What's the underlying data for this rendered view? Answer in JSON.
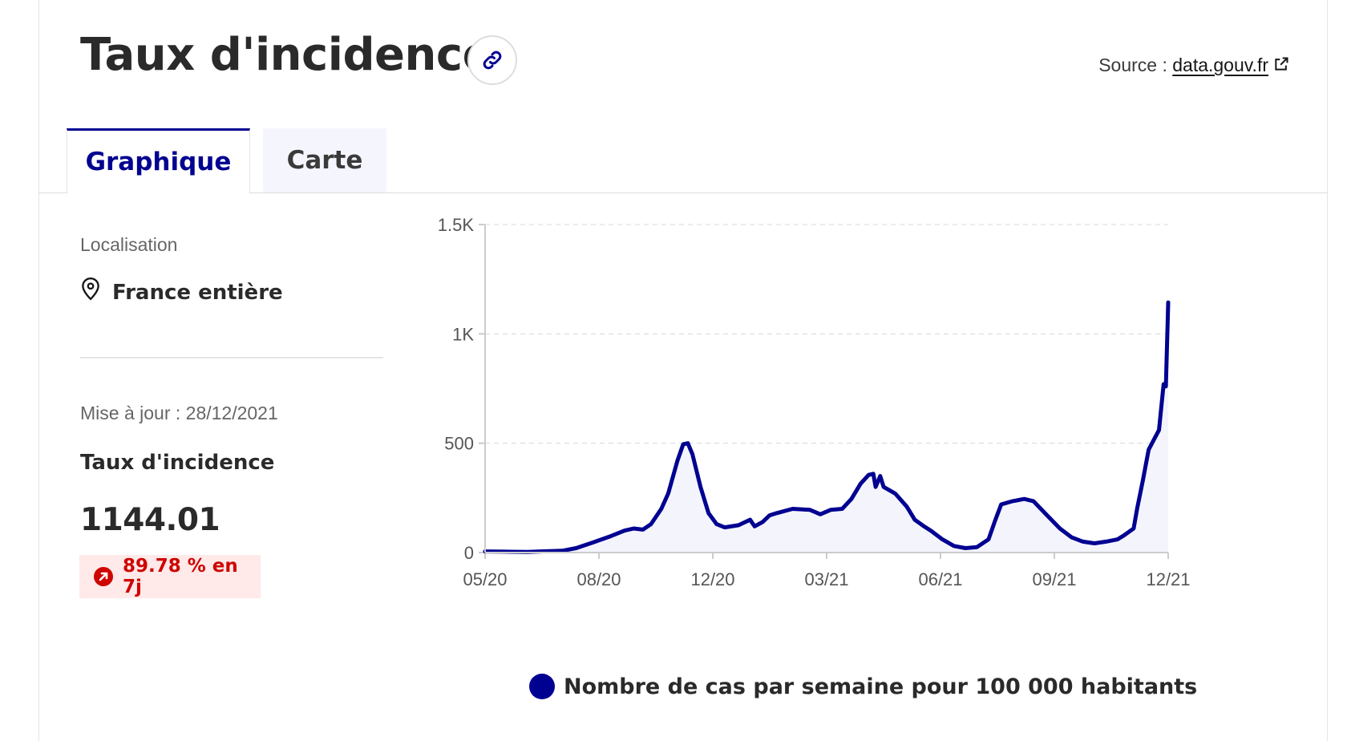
{
  "header": {
    "title": "Taux d'incidence",
    "source_prefix": "Source :",
    "source_link": "data.gouv.fr"
  },
  "icons": {
    "link": "link-icon",
    "external": "external-link-icon",
    "location": "location-pin-icon",
    "trend": "arrow-up-right-icon"
  },
  "tabs": [
    {
      "label": "Graphique",
      "selected": true
    },
    {
      "label": "Carte",
      "selected": false
    }
  ],
  "sidebar": {
    "location_label": "Localisation",
    "location_value": "France entière",
    "update_label": "Mise à jour : 28/12/2021",
    "indicator_label": "Taux d'incidence",
    "indicator_value": "1144.01",
    "trend_text": "89.78 % en 7j"
  },
  "colors": {
    "primary": "#000091",
    "badge_bg": "#ffe9e9",
    "badge_text": "#ce0500"
  },
  "chart_data": {
    "type": "area",
    "x_tick_labels": [
      "05/20",
      "08/20",
      "12/20",
      "03/21",
      "06/21",
      "09/21",
      "12/21"
    ],
    "y_tick_labels": [
      "0",
      "500",
      "1K",
      "1.5K"
    ],
    "y_ticks": [
      0,
      500,
      1000,
      1500
    ],
    "ylim": [
      0,
      1500
    ],
    "xlim": [
      "2020-05-14",
      "2021-12-28"
    ],
    "grid": true,
    "legend_position": "bottom",
    "series": [
      {
        "name": "Nombre de cas par semaine pour 100 000 habitants",
        "color": "#000091",
        "points": [
          [
            "2020-05-14",
            5
          ],
          [
            "2020-06-01",
            4
          ],
          [
            "2020-06-20",
            3
          ],
          [
            "2020-07-01",
            5
          ],
          [
            "2020-07-20",
            8
          ],
          [
            "2020-08-01",
            20
          ],
          [
            "2020-08-15",
            45
          ],
          [
            "2020-08-31",
            75
          ],
          [
            "2020-09-12",
            100
          ],
          [
            "2020-09-20",
            110
          ],
          [
            "2020-09-28",
            105
          ],
          [
            "2020-10-05",
            130
          ],
          [
            "2020-10-14",
            200
          ],
          [
            "2020-10-20",
            270
          ],
          [
            "2020-10-28",
            420
          ],
          [
            "2020-11-02",
            495
          ],
          [
            "2020-11-06",
            500
          ],
          [
            "2020-11-10",
            450
          ],
          [
            "2020-11-17",
            300
          ],
          [
            "2020-11-24",
            180
          ],
          [
            "2020-12-01",
            130
          ],
          [
            "2020-12-08",
            115
          ],
          [
            "2020-12-20",
            125
          ],
          [
            "2020-12-30",
            150
          ],
          [
            "2021-01-03",
            120
          ],
          [
            "2021-01-10",
            140
          ],
          [
            "2021-01-16",
            170
          ],
          [
            "2021-01-22",
            180
          ],
          [
            "2021-02-05",
            200
          ],
          [
            "2021-02-20",
            195
          ],
          [
            "2021-03-01",
            175
          ],
          [
            "2021-03-10",
            195
          ],
          [
            "2021-03-20",
            200
          ],
          [
            "2021-03-28",
            245
          ],
          [
            "2021-04-05",
            315
          ],
          [
            "2021-04-12",
            355
          ],
          [
            "2021-04-16",
            360
          ],
          [
            "2021-04-18",
            300
          ],
          [
            "2021-04-22",
            350
          ],
          [
            "2021-04-25",
            300
          ],
          [
            "2021-05-05",
            270
          ],
          [
            "2021-05-15",
            210
          ],
          [
            "2021-05-22",
            150
          ],
          [
            "2021-05-30",
            120
          ],
          [
            "2021-06-05",
            100
          ],
          [
            "2021-06-15",
            60
          ],
          [
            "2021-06-25",
            30
          ],
          [
            "2021-07-05",
            20
          ],
          [
            "2021-07-15",
            25
          ],
          [
            "2021-07-25",
            60
          ],
          [
            "2021-07-31",
            150
          ],
          [
            "2021-08-05",
            220
          ],
          [
            "2021-08-15",
            235
          ],
          [
            "2021-08-25",
            245
          ],
          [
            "2021-09-02",
            235
          ],
          [
            "2021-09-12",
            180
          ],
          [
            "2021-09-25",
            110
          ],
          [
            "2021-10-05",
            70
          ],
          [
            "2021-10-15",
            50
          ],
          [
            "2021-10-25",
            42
          ],
          [
            "2021-11-04",
            50
          ],
          [
            "2021-11-14",
            60
          ],
          [
            "2021-11-20",
            80
          ],
          [
            "2021-11-28",
            110
          ],
          [
            "2021-12-01",
            200
          ],
          [
            "2021-12-06",
            330
          ],
          [
            "2021-12-11",
            470
          ],
          [
            "2021-12-15",
            510
          ],
          [
            "2021-12-20",
            560
          ],
          [
            "2021-12-24",
            770
          ],
          [
            "2021-12-26",
            760
          ],
          [
            "2021-12-28",
            1144.01
          ]
        ]
      }
    ]
  }
}
